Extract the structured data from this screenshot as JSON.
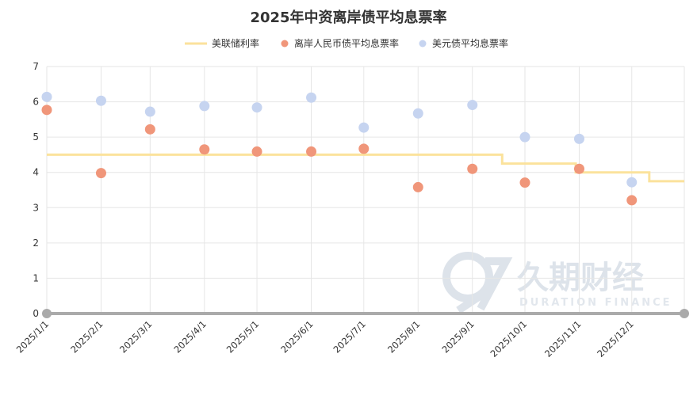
{
  "chart_data": {
    "type": "scatter",
    "title": "2025年中资离岸债平均息票率",
    "xlabel": "",
    "ylabel": "",
    "ylim": [
      0,
      7
    ],
    "yticks": [
      0,
      1,
      2,
      3,
      4,
      5,
      6,
      7
    ],
    "categories": [
      "2025/1/1",
      "2025/2/1",
      "2025/3/1",
      "2025/4/1",
      "2025/5/1",
      "2025/6/1",
      "2025/7/1",
      "2025/8/1",
      "2025/9/1",
      "2025/10/1",
      "2025/11/1",
      "2025/12/1"
    ],
    "grid": true,
    "legend_position": "top-center",
    "fed_rate": {
      "name": "美联储利率",
      "type": "step-line",
      "color": "#fbe29c",
      "steps": [
        {
          "from": "2025/1/1",
          "to": "2025/9/18",
          "value": 4.5
        },
        {
          "from": "2025/9/18",
          "to": "2025/10/30",
          "value": 4.25
        },
        {
          "from": "2025/10/30",
          "to": "2025/12/11",
          "value": 4.0
        },
        {
          "from": "2025/12/11",
          "to": "2025/12/31",
          "value": 3.75
        }
      ]
    },
    "series": [
      {
        "name": "离岸人民币债平均息票率",
        "type": "scatter",
        "color": "#f0967a",
        "points": [
          {
            "x": "2025/1/1",
            "y": 5.77
          },
          {
            "x": "2025/2/1",
            "y": 3.98
          },
          {
            "x": "2025/3/1",
            "y": 5.22
          },
          {
            "x": "2025/4/1",
            "y": 4.65
          },
          {
            "x": "2025/5/1",
            "y": 4.59
          },
          {
            "x": "2025/6/1",
            "y": 4.59
          },
          {
            "x": "2025/7/1",
            "y": 4.67
          },
          {
            "x": "2025/8/1",
            "y": 3.58
          },
          {
            "x": "2025/9/1",
            "y": 4.1
          },
          {
            "x": "2025/10/1",
            "y": 3.71
          },
          {
            "x": "2025/11/1",
            "y": 4.1
          },
          {
            "x": "2025/12/1",
            "y": 3.21
          }
        ]
      },
      {
        "name": "美元债平均息票率",
        "type": "scatter",
        "color": "#c6d4f0",
        "points": [
          {
            "x": "2025/1/1",
            "y": 6.14
          },
          {
            "x": "2025/2/1",
            "y": 6.03
          },
          {
            "x": "2025/3/1",
            "y": 5.72
          },
          {
            "x": "2025/4/1",
            "y": 5.88
          },
          {
            "x": "2025/5/1",
            "y": 5.84
          },
          {
            "x": "2025/6/1",
            "y": 6.12
          },
          {
            "x": "2025/7/1",
            "y": 5.27
          },
          {
            "x": "2025/8/1",
            "y": 5.67
          },
          {
            "x": "2025/9/1",
            "y": 5.91
          },
          {
            "x": "2025/10/1",
            "y": 5.0
          },
          {
            "x": "2025/11/1",
            "y": 4.95
          },
          {
            "x": "2025/12/1",
            "y": 3.72
          }
        ]
      }
    ]
  },
  "watermark": {
    "logo": "久期财经",
    "logo_en": "DURATION FINANCE"
  }
}
